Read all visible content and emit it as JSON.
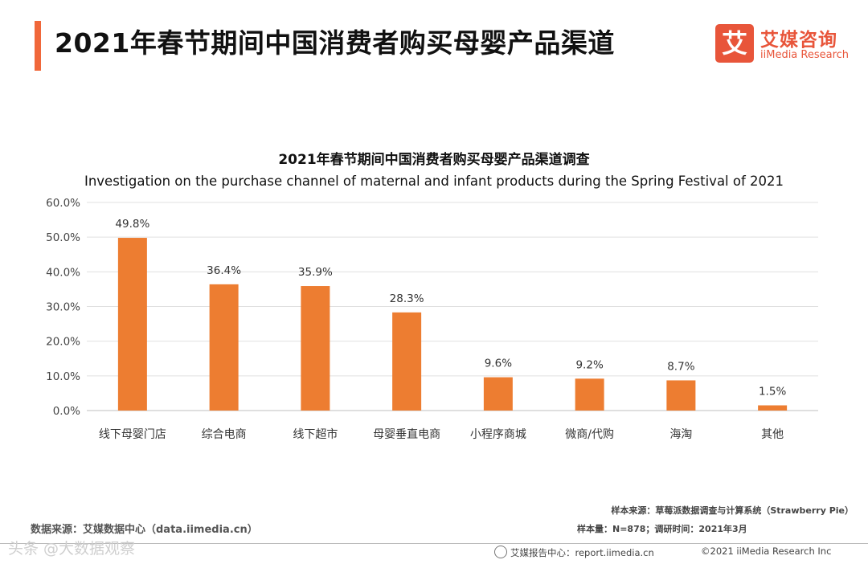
{
  "header": {
    "title": "2021年春节期间中国消费者购买母婴产品渠道",
    "logo_mark": "艾",
    "logo_cn": "艾媒咨询",
    "logo_en": "iiMedia Research",
    "accent_color": "#f0673a"
  },
  "chart_data": {
    "type": "bar",
    "title": "2021年春节期间中国消费者购买母婴产品渠道调查",
    "subtitle": "Investigation on the purchase channel of maternal and infant products during the Spring Festival of 2021",
    "categories": [
      "线下母婴门店",
      "综合电商",
      "线下超市",
      "母婴垂直电商",
      "小程序商城",
      "微商/代购",
      "海淘",
      "其他"
    ],
    "values": [
      49.8,
      36.4,
      35.9,
      28.3,
      9.6,
      9.2,
      8.7,
      1.5
    ],
    "value_labels": [
      "49.8%",
      "36.4%",
      "35.9%",
      "28.3%",
      "9.6%",
      "9.2%",
      "8.7%",
      "1.5%"
    ],
    "yticks": [
      "0.0%",
      "10.0%",
      "20.0%",
      "30.0%",
      "40.0%",
      "50.0%",
      "60.0%"
    ],
    "ylim": [
      0,
      60
    ],
    "xlabel": "",
    "ylabel": "",
    "grid": true,
    "bar_color": "#ed7d31"
  },
  "footer": {
    "source_left": "数据来源：艾媒数据中心（data.iimedia.cn）",
    "sample_source": "样本来源：草莓派数据调查与计算系统（Strawberry Pie）",
    "sample_size": "样本量：N=878；调研时间：2021年3月",
    "report_center": "艾媒报告中心：report.iimedia.cn",
    "copyright": "©2021  iiMedia Research  Inc",
    "watermark": "头条 @大数据观察"
  }
}
